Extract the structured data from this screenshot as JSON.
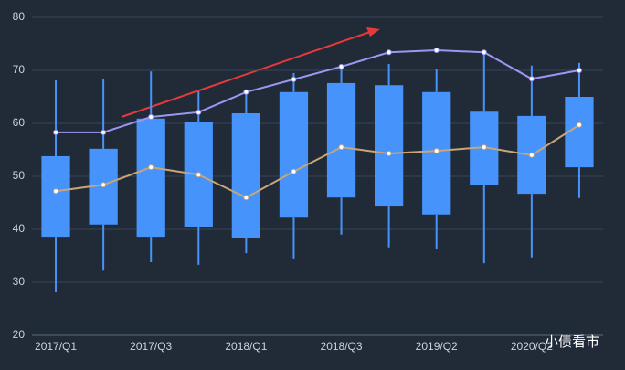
{
  "chart_data": {
    "type": "boxplot",
    "categories": [
      "2017/Q1",
      null,
      "2017/Q3",
      null,
      "2018/Q1",
      null,
      "2018/Q3",
      null,
      "2019/Q2",
      null,
      "2020/Q2",
      null
    ],
    "box": {
      "color": "#4593fb",
      "min": [
        28.1,
        32.2,
        33.8,
        33.3,
        35.5,
        34.5,
        39.0,
        36.6,
        36.2,
        33.6,
        34.7,
        45.9
      ],
      "q1": [
        38.6,
        40.9,
        38.6,
        40.5,
        38.3,
        42.2,
        46.0,
        44.3,
        42.8,
        48.3,
        46.7,
        51.7
      ],
      "q3": [
        53.8,
        55.2,
        60.9,
        60.2,
        61.9,
        65.9,
        67.6,
        67.2,
        65.9,
        62.2,
        61.4,
        65.0
      ],
      "max": [
        68.1,
        68.4,
        69.8,
        66.0,
        66.0,
        69.5,
        71.2,
        71.2,
        70.3,
        73.4,
        70.9,
        71.4
      ]
    },
    "lines": [
      {
        "color": "#9a97f2",
        "values": [
          58.3,
          58.3,
          61.2,
          62.1,
          65.9,
          68.3,
          70.7,
          73.4,
          73.8,
          73.4,
          68.4,
          70.0
        ]
      },
      {
        "color": "#c9a577",
        "values": [
          47.2,
          48.4,
          51.7,
          50.3,
          46.0,
          50.9,
          55.5,
          54.3,
          54.8,
          55.5,
          54.0,
          59.7
        ]
      }
    ],
    "ylim": [
      20,
      80
    ],
    "yticks": [
      20,
      30,
      40,
      50,
      60,
      70,
      80
    ],
    "grid": true,
    "watermark": "小债看市"
  }
}
